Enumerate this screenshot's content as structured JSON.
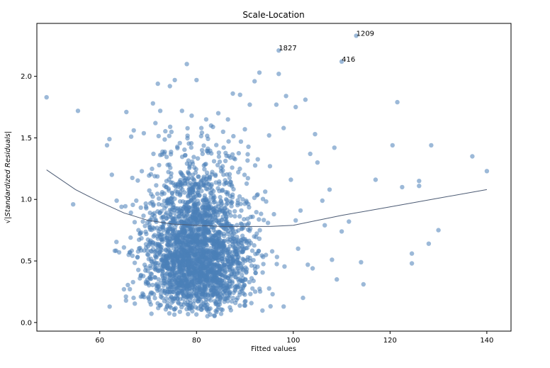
{
  "chart_data": {
    "type": "scatter",
    "title": "Scale-Location",
    "xlabel": "Fitted values",
    "ylabel": "√|Standardized Residuals|",
    "xlim": [
      47,
      145
    ],
    "ylim": [
      -0.07,
      2.43
    ],
    "xticks": [
      "60",
      "80",
      "100",
      "120",
      "140"
    ],
    "xtick_values": [
      60,
      80,
      100,
      120,
      140
    ],
    "yticks": [
      "0.0",
      "0.5",
      "1.0",
      "1.5",
      "2.0"
    ],
    "ytick_values": [
      0.0,
      0.5,
      1.0,
      1.5,
      2.0
    ],
    "grid": false,
    "point_color": "#4a7fb8",
    "point_alpha": 0.55,
    "line_color": "#4b5a73",
    "cluster": {
      "n": 2600,
      "x_center": 80,
      "x_sd": 5.5,
      "seed": 7
    },
    "points": [
      [
        49.0,
        1.83
      ],
      [
        54.5,
        0.96
      ],
      [
        55.5,
        1.72
      ],
      [
        61.5,
        1.44
      ],
      [
        62.0,
        1.49
      ],
      [
        62.5,
        1.2
      ],
      [
        63.5,
        0.99
      ],
      [
        64.0,
        0.57
      ],
      [
        64.5,
        0.94
      ],
      [
        65.0,
        0.61
      ],
      [
        65.5,
        1.71
      ],
      [
        65.0,
        0.27
      ],
      [
        66.5,
        1.51
      ],
      [
        67.0,
        0.2
      ],
      [
        68.0,
        0.75
      ],
      [
        68.5,
        0.21
      ],
      [
        71.0,
        1.78
      ],
      [
        71.5,
        1.62
      ],
      [
        72.0,
        1.94
      ],
      [
        72.5,
        1.72
      ],
      [
        74.5,
        1.92
      ],
      [
        75.5,
        1.97
      ],
      [
        77.0,
        1.72
      ],
      [
        78.0,
        2.1
      ],
      [
        79.0,
        1.68
      ],
      [
        80.0,
        1.97
      ],
      [
        81.0,
        1.58
      ],
      [
        82.0,
        1.65
      ],
      [
        83.0,
        1.6
      ],
      [
        84.5,
        1.7
      ],
      [
        85.5,
        1.55
      ],
      [
        86.5,
        1.65
      ],
      [
        87.5,
        1.86
      ],
      [
        89.0,
        1.85
      ],
      [
        90.0,
        1.57
      ],
      [
        91.0,
        1.77
      ],
      [
        92.0,
        1.96
      ],
      [
        93.0,
        2.03
      ],
      [
        95.0,
        1.52
      ],
      [
        96.5,
        1.77
      ],
      [
        97.0,
        2.02
      ],
      [
        98.0,
        1.58
      ],
      [
        98.5,
        1.84
      ],
      [
        99.5,
        1.16
      ],
      [
        100.5,
        1.75
      ],
      [
        101.5,
        0.91
      ],
      [
        102.5,
        1.81
      ],
      [
        103.5,
        1.37
      ],
      [
        104.5,
        1.53
      ],
      [
        105.0,
        1.3
      ],
      [
        106.0,
        0.99
      ],
      [
        106.5,
        0.79
      ],
      [
        107.5,
        1.08
      ],
      [
        108.0,
        0.51
      ],
      [
        108.5,
        1.42
      ],
      [
        109.0,
        0.35
      ],
      [
        110.0,
        0.74
      ],
      [
        111.5,
        0.82
      ],
      [
        114.0,
        0.49
      ],
      [
        114.5,
        0.31
      ],
      [
        117.0,
        1.16
      ],
      [
        120.5,
        1.44
      ],
      [
        121.5,
        1.79
      ],
      [
        122.5,
        1.1
      ],
      [
        124.5,
        0.56
      ],
      [
        124.5,
        0.48
      ],
      [
        126.0,
        1.15
      ],
      [
        126.0,
        1.11
      ],
      [
        128.0,
        0.64
      ],
      [
        128.5,
        1.44
      ],
      [
        130.0,
        0.75
      ],
      [
        137.0,
        1.35
      ],
      [
        140.0,
        1.23
      ],
      [
        98.0,
        0.13
      ],
      [
        101.0,
        0.6
      ],
      [
        102.0,
        0.2
      ],
      [
        103.0,
        0.47
      ],
      [
        100.5,
        0.83
      ],
      [
        104.0,
        0.44
      ],
      [
        96.0,
        0.88
      ],
      [
        97.0,
        2.21
      ],
      [
        110.0,
        2.12
      ],
      [
        113.0,
        2.33
      ]
    ],
    "lowess": {
      "x": [
        49,
        55,
        60,
        65,
        70,
        75,
        80,
        85,
        90,
        95,
        100,
        105,
        110,
        120,
        130,
        140
      ],
      "y": [
        1.24,
        1.08,
        0.98,
        0.89,
        0.83,
        0.8,
        0.79,
        0.78,
        0.78,
        0.78,
        0.79,
        0.83,
        0.87,
        0.94,
        1.01,
        1.08
      ]
    },
    "annotations": [
      {
        "label": "1827",
        "x": 97.0,
        "y": 2.21
      },
      {
        "label": "416",
        "x": 110.0,
        "y": 2.12
      },
      {
        "label": "1209",
        "x": 113.0,
        "y": 2.33
      }
    ]
  }
}
